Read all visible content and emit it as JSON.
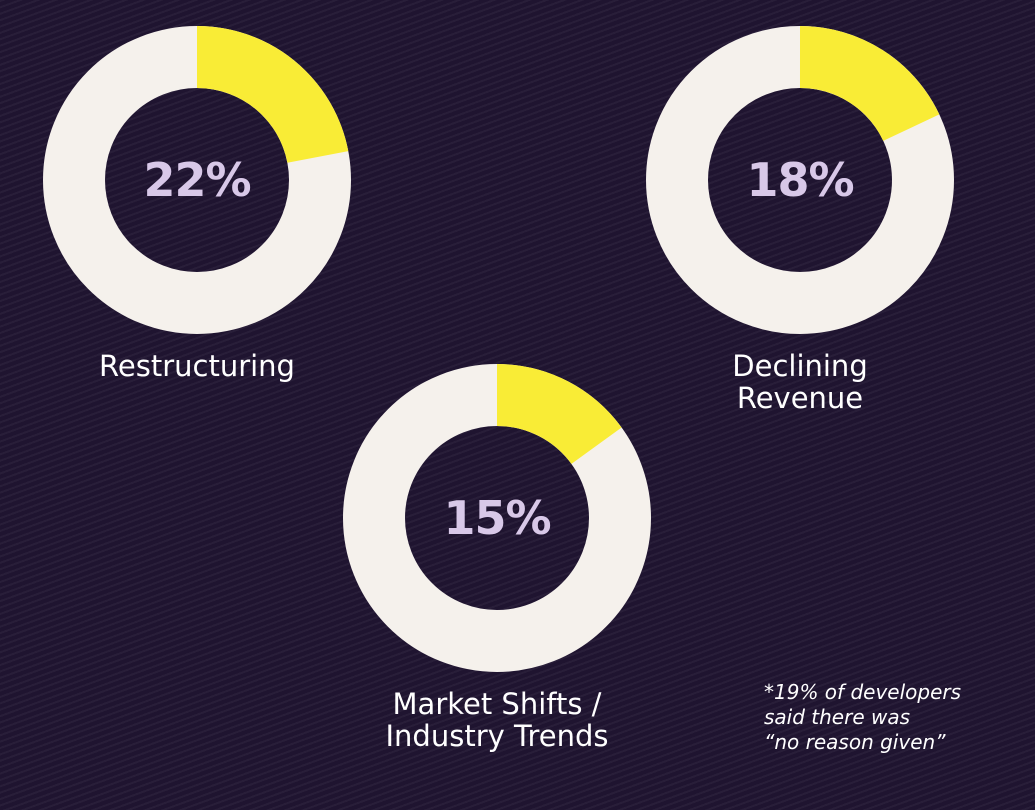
{
  "chart_data": {
    "type": "pie",
    "charts": [
      {
        "label_lines": [
          "Restructuring"
        ],
        "value": 22,
        "value_label": "22%"
      },
      {
        "label_lines": [
          "Declining",
          "Revenue"
        ],
        "value": 18,
        "value_label": "18%"
      },
      {
        "label_lines": [
          "Market Shifts /",
          "Industry Trends"
        ],
        "value": 15,
        "value_label": "15%"
      }
    ],
    "footnote": "*19% of developers\nsaid there was\n“no reason given”"
  },
  "colors": {
    "background": "#1f1430",
    "ring": "#f5f1ec",
    "highlight": "#f9ec36",
    "percent_text": "#d8c8e8",
    "label_text": "#ffffff"
  }
}
